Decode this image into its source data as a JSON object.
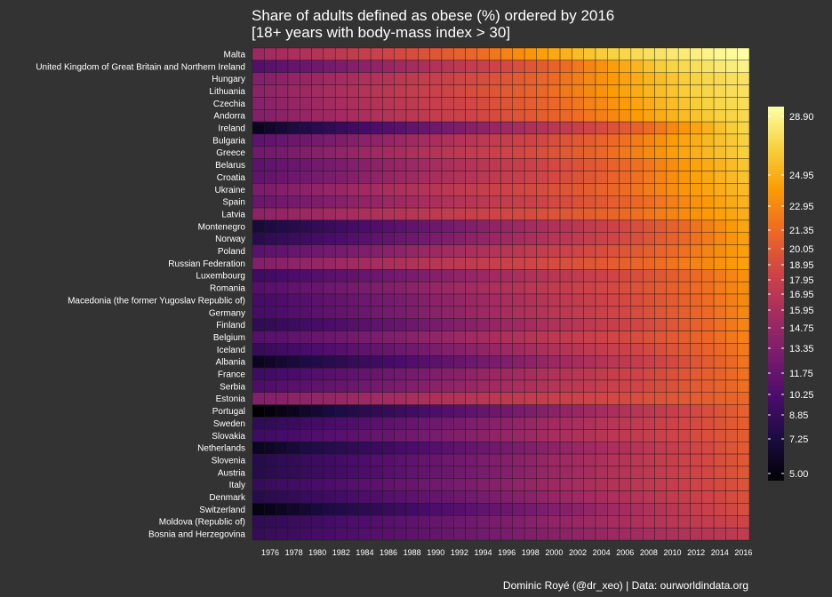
{
  "chart_data": {
    "type": "heatmap",
    "title_line1": "Share of adults defined as obese (%) ordered by 2016",
    "title_line2": "[18+ years with body-mass index > 30]",
    "caption": "Dominic Royé (@dr_xeo) | Data: ourworldindata.org",
    "x_years": [
      1975,
      1976,
      1977,
      1978,
      1979,
      1980,
      1981,
      1982,
      1983,
      1984,
      1985,
      1986,
      1987,
      1988,
      1989,
      1990,
      1991,
      1992,
      1993,
      1994,
      1995,
      1996,
      1997,
      1998,
      1999,
      2000,
      2001,
      2002,
      2003,
      2004,
      2005,
      2006,
      2007,
      2008,
      2009,
      2010,
      2011,
      2012,
      2013,
      2014,
      2015,
      2016
    ],
    "x_tick_labels": [
      "1976",
      "1978",
      "1980",
      "1982",
      "1984",
      "1986",
      "1988",
      "1990",
      "1992",
      "1994",
      "1996",
      "1998",
      "2000",
      "2002",
      "2004",
      "2006",
      "2008",
      "2010",
      "2012",
      "2014",
      "2016"
    ],
    "rows": [
      {
        "country": "Malta",
        "v1975": 15.5,
        "v2016": 28.9
      },
      {
        "country": "United Kingdom of Great Britain and Northern Ireland",
        "v1975": 10.9,
        "v2016": 27.8
      },
      {
        "country": "Hungary",
        "v1975": 14.0,
        "v2016": 26.4
      },
      {
        "country": "Lithuania",
        "v1975": 14.5,
        "v2016": 26.3
      },
      {
        "country": "Czechia",
        "v1975": 14.2,
        "v2016": 26.0
      },
      {
        "country": "Andorra",
        "v1975": 14.0,
        "v2016": 25.6
      },
      {
        "country": "Ireland",
        "v1975": 6.0,
        "v2016": 25.3
      },
      {
        "country": "Bulgaria",
        "v1975": 11.6,
        "v2016": 25.0
      },
      {
        "country": "Greece",
        "v1975": 12.8,
        "v2016": 24.9
      },
      {
        "country": "Belarus",
        "v1975": 11.5,
        "v2016": 24.5
      },
      {
        "country": "Croatia",
        "v1975": 11.8,
        "v2016": 24.4
      },
      {
        "country": "Ukraine",
        "v1975": 13.5,
        "v2016": 24.1
      },
      {
        "country": "Spain",
        "v1975": 12.4,
        "v2016": 23.8
      },
      {
        "country": "Latvia",
        "v1975": 14.5,
        "v2016": 23.6
      },
      {
        "country": "Montenegro",
        "v1975": 7.0,
        "v2016": 23.3
      },
      {
        "country": "Norway",
        "v1975": 8.2,
        "v2016": 23.1
      },
      {
        "country": "Poland",
        "v1975": 11.4,
        "v2016": 23.1
      },
      {
        "country": "Russian Federation",
        "v1975": 14.0,
        "v2016": 23.1
      },
      {
        "country": "Luxembourg",
        "v1975": 9.5,
        "v2016": 22.6
      },
      {
        "country": "Romania",
        "v1975": 11.0,
        "v2016": 22.5
      },
      {
        "country": "Macedonia (the former Yugoslav Republic of)",
        "v1975": 10.0,
        "v2016": 22.4
      },
      {
        "country": "Germany",
        "v1975": 10.0,
        "v2016": 22.3
      },
      {
        "country": "Finland",
        "v1975": 8.5,
        "v2016": 22.2
      },
      {
        "country": "Belgium",
        "v1975": 11.0,
        "v2016": 22.1
      },
      {
        "country": "Iceland",
        "v1975": 9.0,
        "v2016": 21.9
      },
      {
        "country": "Albania",
        "v1975": 6.0,
        "v2016": 21.7
      },
      {
        "country": "France",
        "v1975": 9.5,
        "v2016": 21.6
      },
      {
        "country": "Serbia",
        "v1975": 10.5,
        "v2016": 21.5
      },
      {
        "country": "Estonia",
        "v1975": 14.0,
        "v2016": 21.2
      },
      {
        "country": "Portugal",
        "v1975": 5.0,
        "v2016": 20.8
      },
      {
        "country": "Sweden",
        "v1975": 8.5,
        "v2016": 20.6
      },
      {
        "country": "Slovakia",
        "v1975": 9.5,
        "v2016": 20.5
      },
      {
        "country": "Netherlands",
        "v1975": 6.0,
        "v2016": 20.4
      },
      {
        "country": "Slovenia",
        "v1975": 8.0,
        "v2016": 20.2
      },
      {
        "country": "Austria",
        "v1975": 8.0,
        "v2016": 20.1
      },
      {
        "country": "Italy",
        "v1975": 9.0,
        "v2016": 19.9
      },
      {
        "country": "Denmark",
        "v1975": 8.0,
        "v2016": 19.7
      },
      {
        "country": "Switzerland",
        "v1975": 5.5,
        "v2016": 19.5
      },
      {
        "country": "Moldova (Republic of)",
        "v1975": 8.5,
        "v2016": 18.9
      },
      {
        "country": "Bosnia and Herzegovina",
        "v1975": 9.0,
        "v2016": 17.9
      }
    ],
    "legend": {
      "min": 5.0,
      "max": 28.9,
      "ticks": [
        "28.90",
        "24.95",
        "22.95",
        "21.35",
        "20.05",
        "18.95",
        "17.95",
        "16.95",
        "15.95",
        "14.75",
        "13.35",
        "11.75",
        "10.25",
        "8.85",
        "7.25",
        "5.00"
      ],
      "colors": [
        "#000004",
        "#1b0c41",
        "#4a0c6b",
        "#781c6d",
        "#a52c60",
        "#cf4446",
        "#ed6925",
        "#fb9b06",
        "#f7d13d",
        "#fcffa4"
      ],
      "stops": [
        5.0,
        7.25,
        10.25,
        13.35,
        15.95,
        18.95,
        21.35,
        22.95,
        24.95,
        28.9
      ]
    },
    "colors": {
      "background": "#333333",
      "text": "#ffffff",
      "cell_border": "#1a1a1a"
    }
  }
}
